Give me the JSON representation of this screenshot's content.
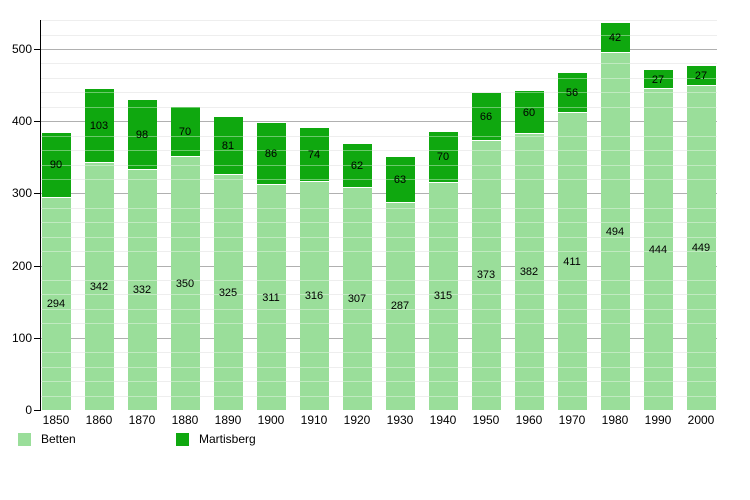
{
  "chart_data": {
    "type": "bar",
    "stacked": true,
    "title": "",
    "xlabel": "",
    "ylabel": "",
    "categories": [
      "1850",
      "1860",
      "1870",
      "1880",
      "1890",
      "1900",
      "1910",
      "1920",
      "1930",
      "1940",
      "1950",
      "1960",
      "1970",
      "1980",
      "1990",
      "2000"
    ],
    "series": [
      {
        "name": "Betten",
        "color": "#9ade9a",
        "values": [
          294,
          342,
          332,
          350,
          325,
          311,
          316,
          307,
          287,
          315,
          373,
          382,
          411,
          494,
          444,
          449
        ]
      },
      {
        "name": "Martisberg",
        "color": "#0fa80f",
        "values": [
          90,
          103,
          98,
          70,
          81,
          86,
          74,
          62,
          63,
          70,
          66,
          60,
          56,
          42,
          27,
          27
        ]
      }
    ],
    "totals": [
      384,
      445,
      430,
      420,
      406,
      397,
      390,
      369,
      350,
      385,
      439,
      442,
      467,
      536,
      471,
      476
    ],
    "ylim": [
      0,
      540
    ],
    "y_ticks": [
      0,
      100,
      200,
      300,
      400,
      500
    ],
    "minor_grid_step": 20,
    "grid": true,
    "value_labels": "inside-segment-center",
    "legend_position": "bottom"
  },
  "legend": {
    "items": [
      {
        "label": "Betten",
        "color": "#9ade9a"
      },
      {
        "label": "Martisberg",
        "color": "#0fa80f"
      }
    ]
  },
  "colors": {
    "background": "#ffffff",
    "axis": "#000000",
    "minor_grid": "#e4e4e4",
    "major_grid": "#b0b0b0",
    "label_text": "#000000"
  }
}
